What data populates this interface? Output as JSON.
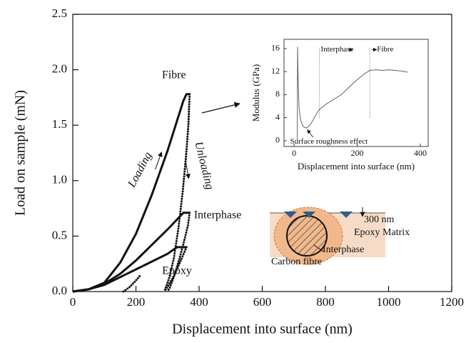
{
  "chart_data": [
    {
      "type": "line",
      "x_label": "Displacement into surface (nm)",
      "y_label": "Load on sample (mN)",
      "xlim": [
        0,
        1200
      ],
      "xticks": [
        0,
        200,
        400,
        600,
        800,
        1000,
        1200
      ],
      "ylim": [
        0,
        2.5
      ],
      "yticks": [
        {
          "value": 0,
          "label": "0.0"
        },
        0.5,
        {
          "value": 1,
          "label": "1.0"
        },
        1.5,
        {
          "value": 2,
          "label": "2.0"
        },
        2.5
      ],
      "series": [
        {
          "name": "Fibre",
          "color": "#111111",
          "style": "solid",
          "x": [
            0,
            50,
            100,
            150,
            200,
            250,
            300,
            350,
            360,
            370
          ],
          "values": [
            0,
            0.02,
            0.08,
            0.26,
            0.52,
            0.87,
            1.27,
            1.72,
            1.78,
            1.78
          ]
        },
        {
          "color": "#111111",
          "style": "dotted",
          "x": [
            370,
            366,
            358,
            348,
            335,
            320,
            305,
            290
          ],
          "values": [
            1.78,
            1.5,
            1.2,
            0.9,
            0.58,
            0.3,
            0.12,
            0
          ]
        },
        {
          "name": "Interphase",
          "color": "#111111",
          "style": "solid",
          "x": [
            0,
            50,
            100,
            150,
            200,
            250,
            300,
            350,
            370
          ],
          "values": [
            0,
            0.02,
            0.07,
            0.16,
            0.28,
            0.42,
            0.56,
            0.71,
            0.71
          ]
        },
        {
          "color": "#111111",
          "style": "dotted",
          "x": [
            370,
            365,
            352,
            338,
            322,
            308,
            300
          ],
          "values": [
            0.71,
            0.6,
            0.45,
            0.3,
            0.15,
            0.04,
            0
          ]
        },
        {
          "name": "Epoxy",
          "color": "#111111",
          "style": "solid",
          "x": [
            0,
            50,
            100,
            150,
            200,
            250,
            300,
            330,
            360
          ],
          "values": [
            0,
            0.02,
            0.06,
            0.13,
            0.2,
            0.27,
            0.34,
            0.4,
            0.4
          ]
        },
        {
          "color": "#111111",
          "style": "dotted",
          "x": [
            360,
            345,
            322,
            302,
            290
          ],
          "values": [
            0.4,
            0.3,
            0.15,
            0.05,
            0
          ]
        },
        {
          "color": "#111111",
          "style": "dotted",
          "x": [
            160,
            180,
            200,
            215
          ],
          "values": [
            0,
            0.04,
            0.1,
            0.15
          ]
        }
      ],
      "annotations": [
        "Loading",
        "Unloading"
      ]
    },
    {
      "type": "line",
      "x_label": "Displacement into surface (nm)",
      "y_label": "Modulus (GPa)",
      "xlim": [
        -32,
        425
      ],
      "xticks": [
        0,
        200,
        400
      ],
      "ylim": [
        -1,
        17.6
      ],
      "yticks": [
        0,
        4,
        8,
        12,
        16
      ],
      "series": [
        {
          "color": "#555555",
          "style": "thin",
          "x": [
            10,
            11,
            13,
            16,
            20,
            25,
            30,
            40,
            50,
            60,
            70,
            80,
            100,
            120,
            150,
            180,
            200,
            220,
            240,
            260,
            280,
            300,
            320,
            340,
            360
          ],
          "values": [
            0,
            16.3,
            9.5,
            5.5,
            3.8,
            2.9,
            2.4,
            2.2,
            2.7,
            3.6,
            4.6,
            5.4,
            6.3,
            7,
            8,
            9.6,
            10.6,
            11.5,
            12.2,
            12.3,
            12.2,
            12.3,
            12.2,
            12.1,
            11.9
          ]
        }
      ],
      "vlines": [
        80,
        240
      ],
      "annotations": [
        "Interphase",
        "Fibre",
        "Surface roughness effect"
      ]
    }
  ],
  "schematic": {
    "labels": [
      "300 nm",
      "Epoxy Matrix",
      "Interphase",
      "Carbon fibre"
    ]
  }
}
